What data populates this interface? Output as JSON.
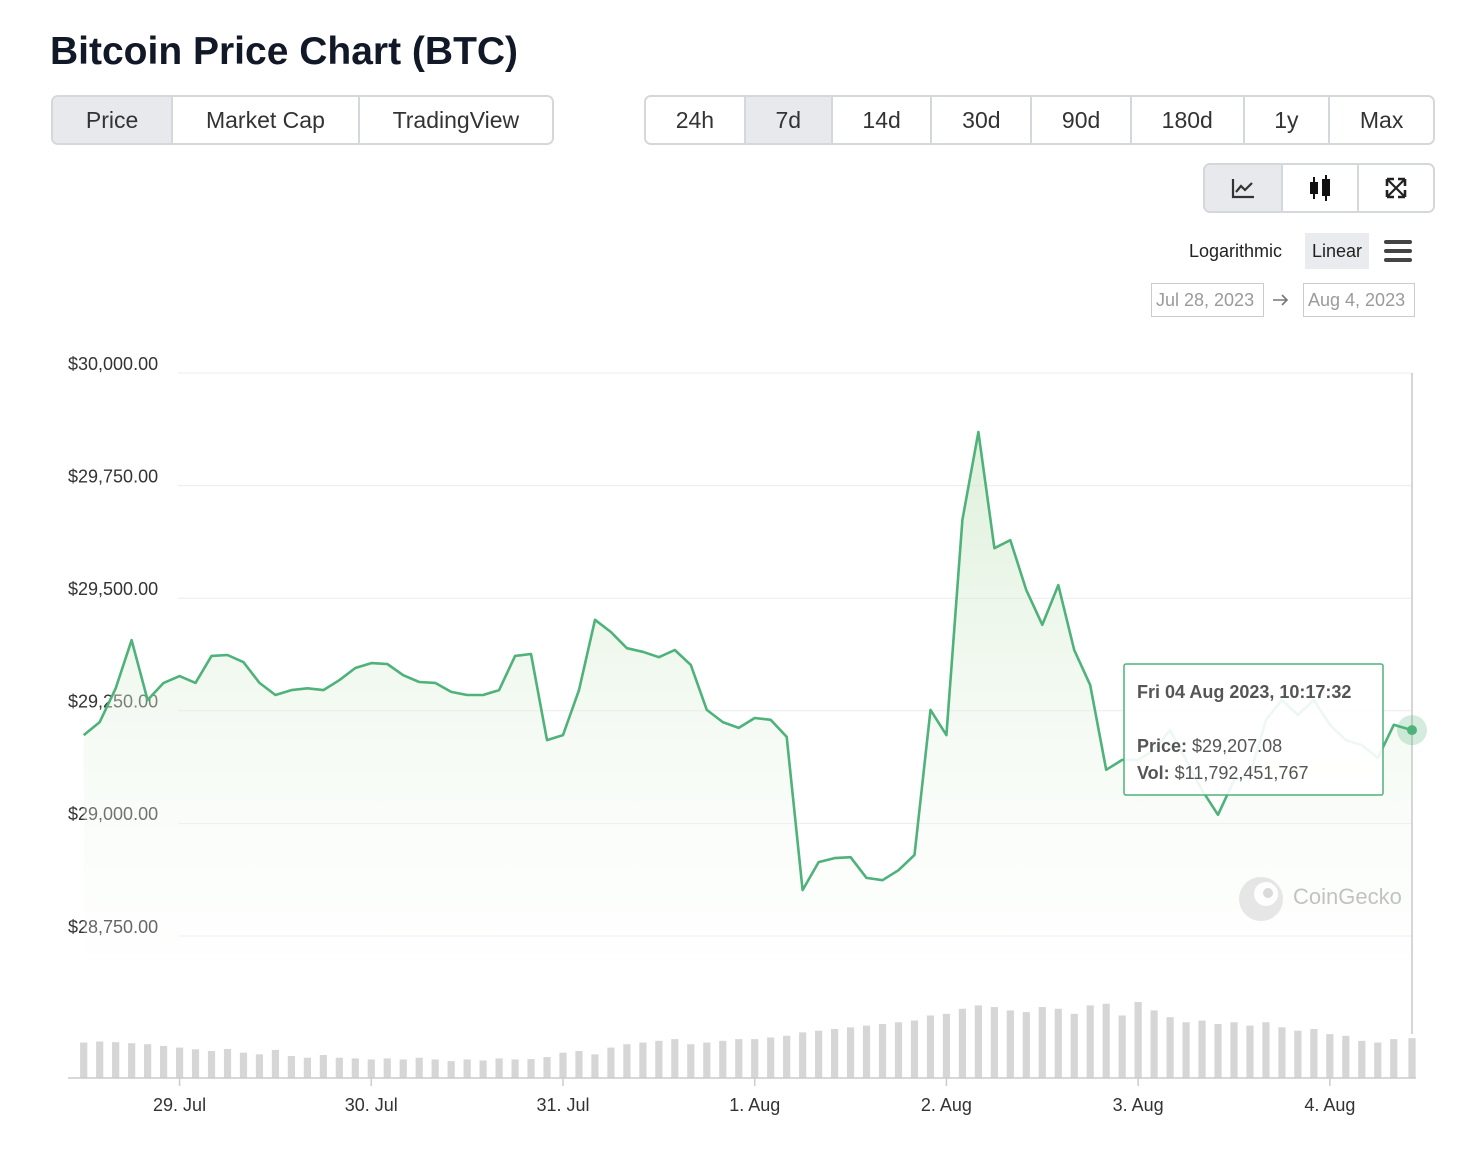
{
  "header": {
    "title": "Bitcoin Price Chart (BTC)"
  },
  "tabs": {
    "items": [
      "Price",
      "Market Cap",
      "TradingView"
    ],
    "active": 0
  },
  "ranges": {
    "items": [
      "24h",
      "7d",
      "14d",
      "30d",
      "90d",
      "180d",
      "1y",
      "Max"
    ],
    "active": 1
  },
  "chart_tools": {
    "active": 0
  },
  "scale_options": {
    "items": [
      "Logarithmic",
      "Linear"
    ],
    "active": 1
  },
  "date_range": {
    "from": "Jul 28, 2023",
    "to": "Aug 4, 2023"
  },
  "watermark": "CoinGecko",
  "chart_data": {
    "type": "line",
    "color": "#4eb27a",
    "volume_color": "#d6d6d6",
    "grid": true,
    "ylim": [
      28750,
      30000
    ],
    "yticks": [
      {
        "value": 30000,
        "label": "$30,000.00"
      },
      {
        "value": 29750,
        "label": "$29,750.00"
      },
      {
        "value": 29500,
        "label": "$29,500.00"
      },
      {
        "value": 29250,
        "label": "$29,250.00"
      },
      {
        "value": 29000,
        "label": "$29,000.00"
      },
      {
        "value": 28750,
        "label": "$28,750.00"
      }
    ],
    "xlim": [
      "2023-07-28T10:17",
      "2023-08-04T10:17"
    ],
    "xticks": [
      {
        "value": "2023-07-29T00:00",
        "label": "29. Jul"
      },
      {
        "value": "2023-07-30T00:00",
        "label": "30. Jul"
      },
      {
        "value": "2023-07-31T00:00",
        "label": "31. Jul"
      },
      {
        "value": "2023-08-01T00:00",
        "label": "1. Aug"
      },
      {
        "value": "2023-08-02T00:00",
        "label": "2. Aug"
      },
      {
        "value": "2023-08-03T00:00",
        "label": "3. Aug"
      },
      {
        "value": "2023-08-04T00:00",
        "label": "4. Aug"
      }
    ],
    "x": [
      "2023-07-28T12:00",
      "2023-07-28T14:00",
      "2023-07-28T16:00",
      "2023-07-28T18:00",
      "2023-07-28T20:00",
      "2023-07-28T22:00",
      "2023-07-29T00:00",
      "2023-07-29T02:00",
      "2023-07-29T04:00",
      "2023-07-29T06:00",
      "2023-07-29T08:00",
      "2023-07-29T10:00",
      "2023-07-29T12:00",
      "2023-07-29T14:00",
      "2023-07-29T16:00",
      "2023-07-29T18:00",
      "2023-07-29T20:00",
      "2023-07-29T22:00",
      "2023-07-30T00:00",
      "2023-07-30T02:00",
      "2023-07-30T04:00",
      "2023-07-30T06:00",
      "2023-07-30T08:00",
      "2023-07-30T10:00",
      "2023-07-30T12:00",
      "2023-07-30T14:00",
      "2023-07-30T16:00",
      "2023-07-30T18:00",
      "2023-07-30T20:00",
      "2023-07-30T22:00",
      "2023-07-31T00:00",
      "2023-07-31T02:00",
      "2023-07-31T04:00",
      "2023-07-31T06:00",
      "2023-07-31T08:00",
      "2023-07-31T10:00",
      "2023-07-31T12:00",
      "2023-07-31T14:00",
      "2023-07-31T16:00",
      "2023-07-31T18:00",
      "2023-07-31T20:00",
      "2023-07-31T22:00",
      "2023-08-01T00:00",
      "2023-08-01T02:00",
      "2023-08-01T04:00",
      "2023-08-01T06:00",
      "2023-08-01T08:00",
      "2023-08-01T10:00",
      "2023-08-01T12:00",
      "2023-08-01T14:00",
      "2023-08-01T16:00",
      "2023-08-01T18:00",
      "2023-08-01T20:00",
      "2023-08-01T22:00",
      "2023-08-02T00:00",
      "2023-08-02T02:00",
      "2023-08-02T04:00",
      "2023-08-02T06:00",
      "2023-08-02T08:00",
      "2023-08-02T10:00",
      "2023-08-02T12:00",
      "2023-08-02T14:00",
      "2023-08-02T16:00",
      "2023-08-02T18:00",
      "2023-08-02T20:00",
      "2023-08-02T22:00",
      "2023-08-03T00:00",
      "2023-08-03T02:00",
      "2023-08-03T04:00",
      "2023-08-03T06:00",
      "2023-08-03T08:00",
      "2023-08-03T10:00",
      "2023-08-03T12:00",
      "2023-08-03T14:00",
      "2023-08-03T16:00",
      "2023-08-03T18:00",
      "2023-08-03T20:00",
      "2023-08-03T22:00",
      "2023-08-04T00:00",
      "2023-08-04T02:00",
      "2023-08-04T04:00",
      "2023-08-04T06:00",
      "2023-08-04T08:00",
      "2023-08-04T10:17"
    ],
    "values": [
      29196,
      29225,
      29300,
      29407,
      29274,
      29312,
      29327,
      29312,
      29372,
      29374,
      29358,
      29312,
      29285,
      29296,
      29300,
      29296,
      29318,
      29345,
      29356,
      29354,
      29329,
      29314,
      29312,
      29292,
      29285,
      29285,
      29296,
      29372,
      29376,
      29185,
      29196,
      29296,
      29452,
      29425,
      29389,
      29381,
      29369,
      29385,
      29352,
      29252,
      29225,
      29212,
      29234,
      29230,
      29192,
      28852,
      28914,
      28923,
      28925,
      28879,
      28874,
      28896,
      28930,
      29252,
      29196,
      29674,
      29869,
      29611,
      29629,
      29518,
      29441,
      29529,
      29385,
      29307,
      29119,
      29141,
      29141,
      29163,
      29207,
      29141,
      29074,
      29019,
      29096,
      29107,
      29230,
      29274,
      29241,
      29274,
      29219,
      29185,
      29174,
      29145,
      29219,
      29207.08
    ],
    "volume": [
      10500000000,
      10800000000,
      10600000000,
      10300000000,
      10000000000,
      9500000000,
      9000000000,
      8500000000,
      8000000000,
      8600000000,
      7500000000,
      7000000000,
      8300000000,
      6500000000,
      6000000000,
      6800000000,
      6000000000,
      5800000000,
      5500000000,
      5800000000,
      5500000000,
      6000000000,
      5500000000,
      5000000000,
      5500000000,
      5200000000,
      5800000000,
      5500000000,
      5600000000,
      6200000000,
      7500000000,
      8000000000,
      7000000000,
      9000000000,
      10000000000,
      10500000000,
      11000000000,
      11500000000,
      10000000000,
      10500000000,
      11000000000,
      11500000000,
      11500000000,
      12000000000,
      12500000000,
      13500000000,
      14000000000,
      14500000000,
      15000000000,
      15500000000,
      16000000000,
      16500000000,
      17000000000,
      18500000000,
      19000000000,
      20500000000,
      21500000000,
      21000000000,
      20000000000,
      19500000000,
      21000000000,
      20500000000,
      19000000000,
      21500000000,
      22000000000,
      18500000000,
      22500000000,
      20000000000,
      18000000000,
      16500000000,
      17000000000,
      16000000000,
      16500000000,
      15500000000,
      16500000000,
      15000000000,
      14000000000,
      14500000000,
      13000000000,
      12500000000,
      11000000000,
      10500000000,
      11500000000,
      11792451767
    ],
    "tooltip": {
      "title": "Fri 04 Aug 2023, 10:17:32",
      "price_label": "Price:",
      "price": "$29,207.08",
      "vol_label": "Vol:",
      "vol": "$11,792,451,767"
    }
  }
}
